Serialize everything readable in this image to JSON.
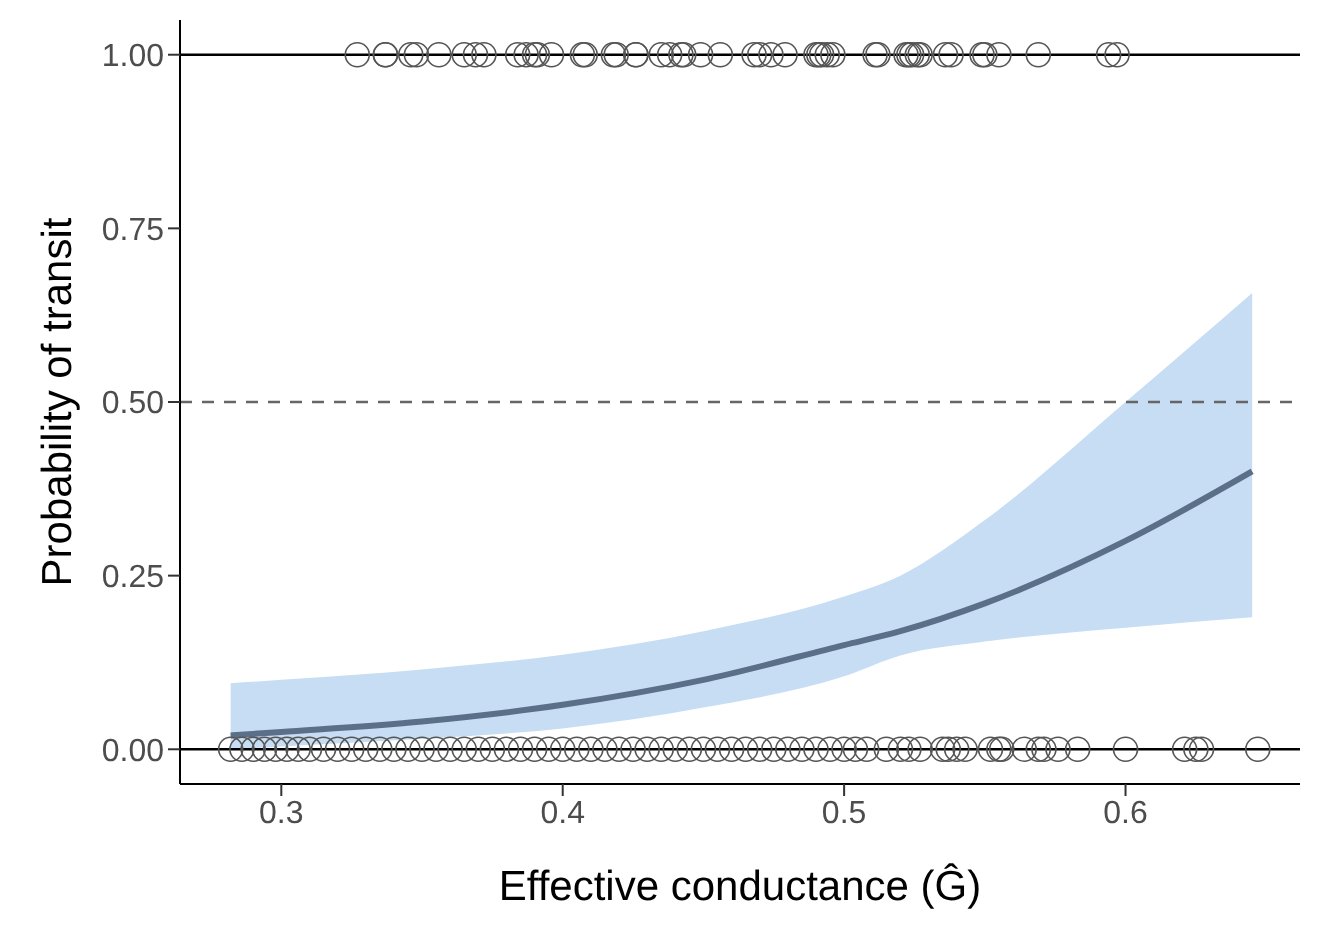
{
  "chart_data": {
    "type": "scatter",
    "xlabel": "Effective conductance (Ĝ)",
    "ylabel": "Probability of transit",
    "xlim": [
      0.264,
      0.662
    ],
    "xticks": [
      0.3,
      0.4,
      0.5,
      0.6
    ],
    "ylim": [
      -0.05,
      1.05
    ],
    "yticks": [
      {
        "value": 0,
        "label": "0.00"
      },
      0.25,
      {
        "value": 0.5,
        "label": "0.50"
      },
      0.75,
      {
        "value": 1,
        "label": "1.00"
      }
    ],
    "grid": false,
    "legend": false,
    "ref_lines": [
      {
        "axis": "y",
        "value": 0,
        "color": "#000000",
        "line_style": "solid"
      },
      {
        "axis": "y",
        "value": 1,
        "color": "#000000",
        "line_style": "solid"
      },
      {
        "axis": "y",
        "value": 0.5,
        "color": "#666666",
        "line_style": "dashed"
      }
    ],
    "series": [
      {
        "marker": "circle",
        "color": "#555555",
        "x": [
          0.327,
          0.337,
          0.337,
          0.346,
          0.348,
          0.356,
          0.365,
          0.369,
          0.372,
          0.384,
          0.387,
          0.39,
          0.391,
          0.396,
          0.407,
          0.408,
          0.418,
          0.419,
          0.426,
          0.426,
          0.435,
          0.438,
          0.442,
          0.443,
          0.449,
          0.456,
          0.468,
          0.47,
          0.474,
          0.479,
          0.49,
          0.491,
          0.492,
          0.494,
          0.496,
          0.511,
          0.512,
          0.522,
          0.523,
          0.524,
          0.526,
          0.527,
          0.536,
          0.538,
          0.549,
          0.55,
          0.555,
          0.569,
          0.594,
          0.597
        ],
        "values": [
          1,
          1,
          1,
          1,
          1,
          1,
          1,
          1,
          1,
          1,
          1,
          1,
          1,
          1,
          1,
          1,
          1,
          1,
          1,
          1,
          1,
          1,
          1,
          1,
          1,
          1,
          1,
          1,
          1,
          1,
          1,
          1,
          1,
          1,
          1,
          1,
          1,
          1,
          1,
          1,
          1,
          1,
          1,
          1,
          1,
          1,
          1,
          1,
          1,
          1
        ]
      },
      {
        "marker": "circle",
        "color": "#555555",
        "x": [
          0.282,
          0.286,
          0.29,
          0.294,
          0.298,
          0.302,
          0.306,
          0.31,
          0.315,
          0.32,
          0.325,
          0.33,
          0.335,
          0.34,
          0.345,
          0.35,
          0.355,
          0.36,
          0.365,
          0.37,
          0.375,
          0.38,
          0.385,
          0.39,
          0.395,
          0.4,
          0.405,
          0.41,
          0.415,
          0.42,
          0.425,
          0.43,
          0.435,
          0.44,
          0.445,
          0.45,
          0.455,
          0.46,
          0.465,
          0.47,
          0.475,
          0.48,
          0.485,
          0.49,
          0.495,
          0.5,
          0.504,
          0.508,
          0.515,
          0.52,
          0.523,
          0.527,
          0.535,
          0.537,
          0.54,
          0.543,
          0.552,
          0.555,
          0.556,
          0.564,
          0.569,
          0.571,
          0.576,
          0.583,
          0.6,
          0.621,
          0.625,
          0.627,
          0.647
        ],
        "values": [
          0,
          0,
          0,
          0,
          0,
          0,
          0,
          0,
          0,
          0,
          0,
          0,
          0,
          0,
          0,
          0,
          0,
          0,
          0,
          0,
          0,
          0,
          0,
          0,
          0,
          0,
          0,
          0,
          0,
          0,
          0,
          0,
          0,
          0,
          0,
          0,
          0,
          0,
          0,
          0,
          0,
          0,
          0,
          0,
          0,
          0,
          0,
          0,
          0,
          0,
          0,
          0,
          0,
          0,
          0,
          0,
          0,
          0,
          0,
          0,
          0,
          0,
          0,
          0,
          0,
          0,
          0,
          0,
          0
        ]
      },
      {
        "type": "line",
        "marker": "none",
        "color": "#5b7088",
        "x": [
          0.282,
          0.3,
          0.35,
          0.4,
          0.45,
          0.5,
          0.52,
          0.55,
          0.6,
          0.645
        ],
        "values": [
          0.02,
          0.025,
          0.04,
          0.064,
          0.1,
          0.15,
          0.17,
          0.21,
          0.3,
          0.4
        ],
        "lower": [
          0.0,
          0.004,
          0.015,
          0.03,
          0.06,
          0.105,
          0.135,
          0.155,
          0.175,
          0.19
        ],
        "upper": [
          0.095,
          0.1,
          0.115,
          0.136,
          0.17,
          0.22,
          0.25,
          0.33,
          0.5,
          0.657
        ]
      }
    ]
  }
}
